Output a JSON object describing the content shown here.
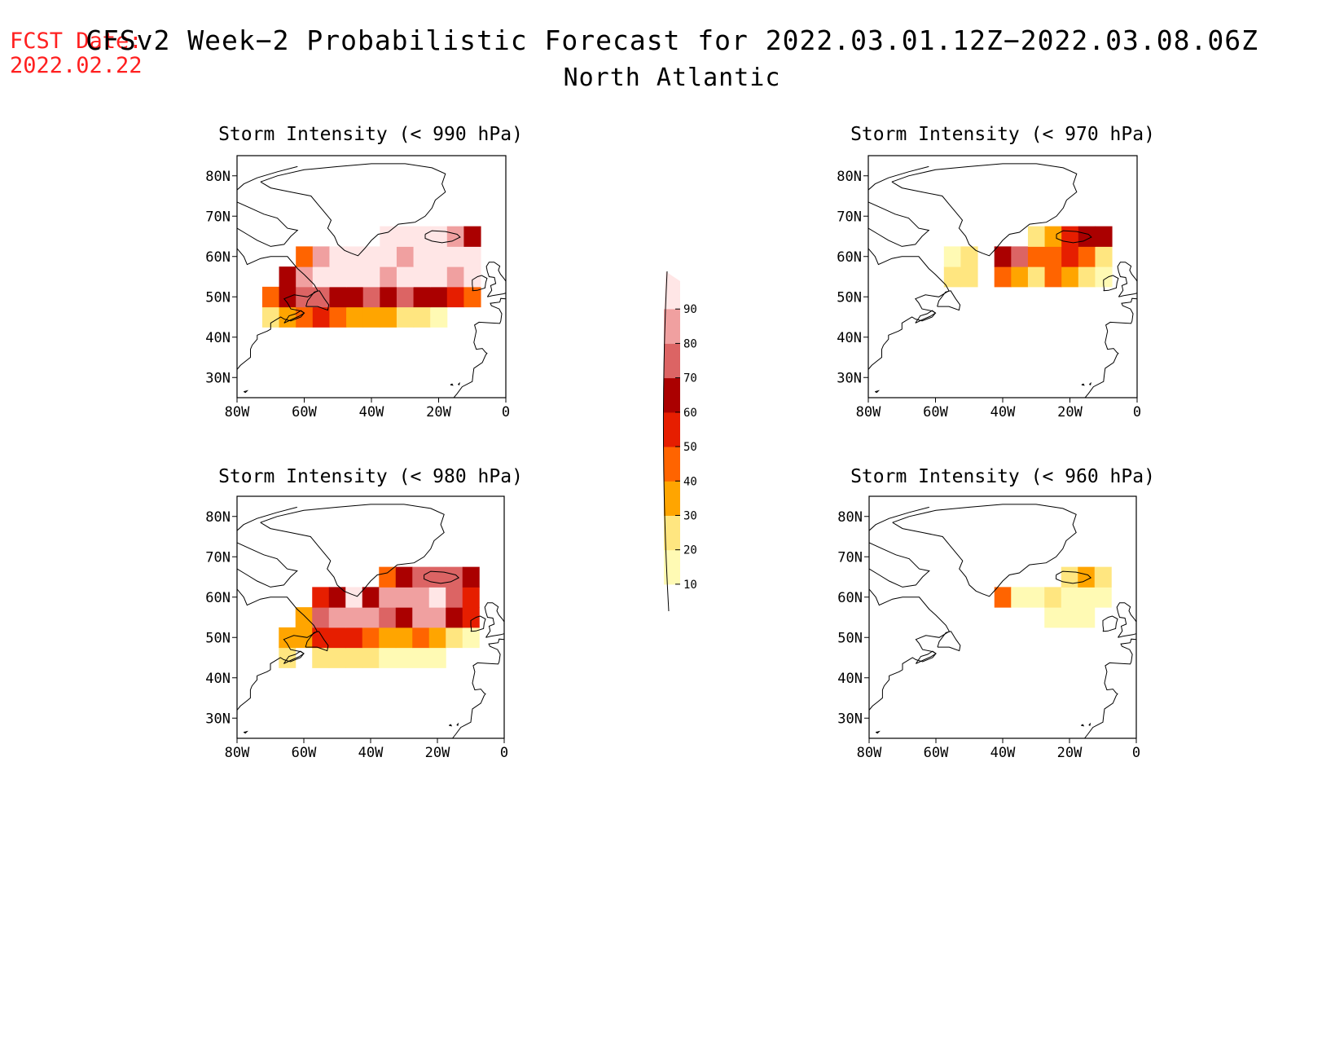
{
  "header": {
    "fcst_label": "FCST Date:",
    "fcst_date": "2022.02.22",
    "title": "CFSv2 Week−2 Probabilistic Forecast for 2022.03.01.12Z−2022.03.08.06Z",
    "subtitle": "North Atlantic"
  },
  "panels": [
    {
      "title": "Storm Intensity (< 990 hPa)"
    },
    {
      "title": "Storm Intensity (< 970 hPa)"
    },
    {
      "title": "Storm Intensity (< 980 hPa)"
    },
    {
      "title": "Storm Intensity (< 960 hPa)"
    }
  ],
  "axes": {
    "lat_ticks": [
      "80N",
      "70N",
      "60N",
      "50N",
      "40N",
      "30N"
    ],
    "lon_ticks": [
      "80W",
      "60W",
      "40W",
      "20W",
      "0"
    ],
    "lat_range": [
      25,
      85
    ],
    "lon_range": [
      -80,
      0
    ]
  },
  "colorbar": {
    "levels": [
      "10",
      "20",
      "30",
      "40",
      "50",
      "60",
      "70",
      "80",
      "90"
    ],
    "colors": [
      "#fffab4",
      "#ffe680",
      "#ffa500",
      "#ff6400",
      "#e61e00",
      "#aa0000",
      "#dc6464",
      "#f0a0a0",
      "#ffe6e6"
    ],
    "label_color": "#000000"
  },
  "chart_data": [
    {
      "type": "heatmap",
      "title": "Storm Intensity (< 990 hPa)",
      "units": "probability (%)",
      "lon": [
        -70,
        -65,
        -60,
        -55,
        -50,
        -45,
        -40,
        -35,
        -30,
        -25,
        -20,
        -15,
        -10
      ],
      "lat": [
        45,
        50,
        55,
        60,
        65
      ],
      "values": [
        [
          20,
          30,
          40,
          50,
          40,
          30,
          30,
          30,
          20,
          20,
          10,
          0,
          0
        ],
        [
          40,
          60,
          70,
          70,
          60,
          60,
          70,
          60,
          70,
          60,
          60,
          50,
          40
        ],
        [
          0,
          60,
          80,
          90,
          90,
          90,
          90,
          80,
          90,
          90,
          90,
          80,
          90
        ],
        [
          0,
          0,
          40,
          80,
          90,
          90,
          90,
          90,
          80,
          90,
          90,
          90,
          90
        ],
        [
          0,
          0,
          0,
          0,
          0,
          0,
          0,
          90,
          90,
          90,
          90,
          80,
          60
        ]
      ]
    },
    {
      "type": "heatmap",
      "title": "Storm Intensity (< 970 hPa)",
      "units": "probability (%)",
      "lon": [
        -55,
        -50,
        -45,
        -40,
        -35,
        -30,
        -25,
        -20,
        -15,
        -10
      ],
      "lat": [
        55,
        60,
        65
      ],
      "values": [
        [
          20,
          20,
          0,
          40,
          30,
          20,
          40,
          30,
          20,
          10
        ],
        [
          10,
          20,
          0,
          60,
          70,
          40,
          40,
          50,
          40,
          20
        ],
        [
          0,
          0,
          0,
          0,
          0,
          20,
          30,
          50,
          60,
          60
        ]
      ]
    },
    {
      "type": "heatmap",
      "title": "Storm Intensity (< 980 hPa)",
      "units": "probability (%)",
      "lon": [
        -65,
        -60,
        -55,
        -50,
        -45,
        -40,
        -35,
        -30,
        -25,
        -20,
        -15,
        -10
      ],
      "lat": [
        45,
        50,
        55,
        60,
        65
      ],
      "values": [
        [
          20,
          0,
          20,
          20,
          20,
          20,
          10,
          10,
          10,
          10,
          0,
          0
        ],
        [
          30,
          30,
          50,
          50,
          50,
          40,
          30,
          30,
          40,
          30,
          20,
          10
        ],
        [
          0,
          30,
          70,
          80,
          80,
          80,
          70,
          60,
          80,
          80,
          60,
          50
        ],
        [
          0,
          0,
          50,
          60,
          90,
          60,
          80,
          80,
          80,
          90,
          70,
          50
        ],
        [
          0,
          0,
          0,
          0,
          0,
          0,
          40,
          60,
          70,
          70,
          70,
          60
        ]
      ]
    },
    {
      "type": "heatmap",
      "title": "Storm Intensity (< 960 hPa)",
      "units": "probability (%)",
      "lon": [
        -40,
        -35,
        -30,
        -25,
        -20,
        -15,
        -10
      ],
      "lat": [
        55,
        60,
        65
      ],
      "values": [
        [
          0,
          0,
          0,
          10,
          10,
          10,
          0
        ],
        [
          40,
          10,
          10,
          20,
          10,
          10,
          10
        ],
        [
          0,
          0,
          0,
          0,
          20,
          30,
          20
        ]
      ]
    }
  ]
}
